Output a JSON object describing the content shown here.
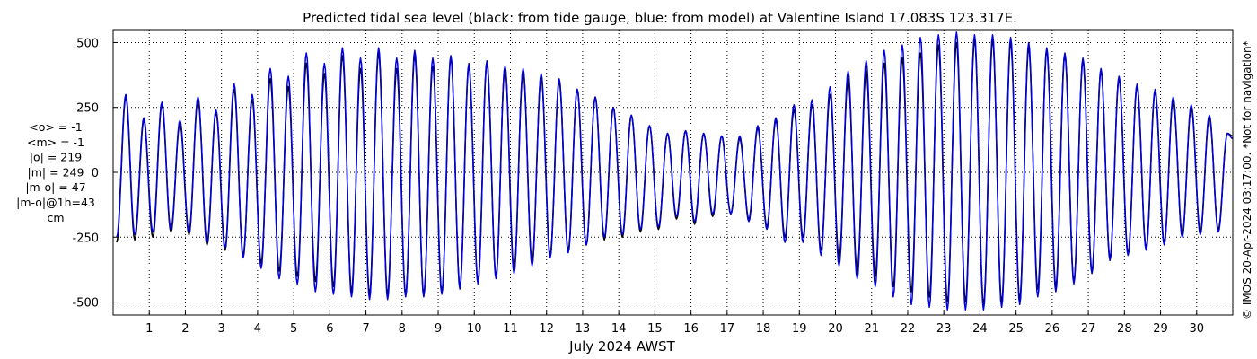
{
  "chart_data": {
    "type": "line",
    "title": "Predicted tidal sea level (black: from tide gauge, blue: from model) at Valentine Island 17.083S 123.317E.",
    "xlabel": "July 2024 AWST",
    "ylabel": "",
    "xlim": [
      0.0,
      31.0
    ],
    "ylim": [
      -550,
      550
    ],
    "yticks": [
      -500,
      -250,
      0,
      250,
      500
    ],
    "ytick_labels": [
      "-500",
      "-250",
      "0",
      "250",
      "500"
    ],
    "xticks": [
      1,
      2,
      3,
      4,
      5,
      6,
      7,
      8,
      9,
      10,
      11,
      12,
      13,
      14,
      15,
      16,
      17,
      18,
      19,
      20,
      21,
      22,
      23,
      24,
      25,
      26,
      27,
      28,
      29,
      30
    ],
    "xtick_labels": [
      "1",
      "2",
      "3",
      "4",
      "5",
      "6",
      "7",
      "8",
      "9",
      "10",
      "11",
      "12",
      "13",
      "14",
      "15",
      "16",
      "17",
      "18",
      "19",
      "20",
      "21",
      "22",
      "23",
      "24",
      "25",
      "26",
      "27",
      "28",
      "29",
      "30"
    ],
    "grid": true,
    "series": [
      {
        "color": "#000000",
        "x": [
          0.1,
          0.35,
          0.6,
          0.85,
          1.1,
          1.35,
          1.6,
          1.85,
          2.1,
          2.35,
          2.6,
          2.85,
          3.1,
          3.35,
          3.6,
          3.85,
          4.1,
          4.35,
          4.6,
          4.85,
          5.1,
          5.35,
          5.6,
          5.85,
          6.1,
          6.35,
          6.6,
          6.85,
          7.1,
          7.35,
          7.6,
          7.85,
          8.1,
          8.35,
          8.6,
          8.85,
          9.1,
          9.35,
          9.6,
          9.85,
          10.1,
          10.35,
          10.6,
          10.85,
          11.1,
          11.35,
          11.6,
          11.85,
          12.1,
          12.35,
          12.6,
          12.85,
          13.1,
          13.35,
          13.6,
          13.85,
          14.1,
          14.35,
          14.6,
          14.85,
          15.1,
          15.35,
          15.6,
          15.85,
          16.1,
          16.35,
          16.6,
          16.85,
          17.1,
          17.35,
          17.6,
          17.85,
          18.1,
          18.35,
          18.6,
          18.85,
          19.1,
          19.35,
          19.6,
          19.85,
          20.1,
          20.35,
          20.6,
          20.85,
          21.1,
          21.35,
          21.6,
          21.85,
          22.1,
          22.35,
          22.6,
          22.85,
          23.1,
          23.35,
          23.6,
          23.85,
          24.1,
          24.35,
          24.6,
          24.85,
          25.1,
          25.35,
          25.6,
          25.85,
          26.1,
          26.35,
          26.6,
          26.85,
          27.1,
          27.35,
          27.6,
          27.85,
          28.1,
          28.35,
          28.6,
          28.85,
          29.1,
          29.35,
          29.6,
          29.85,
          30.1,
          30.35,
          30.6,
          30.85,
          31.0
        ],
        "y": [
          -270,
          290,
          -260,
          200,
          -250,
          260,
          -230,
          190,
          -240,
          280,
          -280,
          230,
          -300,
          320,
          -320,
          280,
          -350,
          360,
          -380,
          330,
          -400,
          420,
          -420,
          380,
          -440,
          450,
          -460,
          400,
          -470,
          460,
          -470,
          400,
          -470,
          450,
          -470,
          410,
          -460,
          440,
          -440,
          410,
          -420,
          420,
          -400,
          400,
          -380,
          390,
          -350,
          370,
          -320,
          350,
          -300,
          320,
          -280,
          290,
          -260,
          250,
          -250,
          220,
          -230,
          180,
          -220,
          150,
          -180,
          160,
          -200,
          150,
          -170,
          140,
          -160,
          130,
          -180,
          170,
          -210,
          200,
          -250,
          240,
          -250,
          260,
          -300,
          300,
          -330,
          360,
          -380,
          390,
          -400,
          420,
          -440,
          440,
          -460,
          460,
          -480,
          490,
          -500,
          500,
          -500,
          510,
          -510,
          510,
          -500,
          500,
          -490,
          480,
          -450,
          470,
          -440,
          450,
          -420,
          430,
          -380,
          390,
          -330,
          360,
          -310,
          330,
          -290,
          310,
          -270,
          280,
          -240,
          250,
          -230,
          210,
          -220,
          150,
          140
        ]
      },
      {
        "color": "#0000dd",
        "x": [
          0.1,
          0.35,
          0.6,
          0.85,
          1.1,
          1.35,
          1.6,
          1.85,
          2.1,
          2.35,
          2.6,
          2.85,
          3.1,
          3.35,
          3.6,
          3.85,
          4.1,
          4.35,
          4.6,
          4.85,
          5.1,
          5.35,
          5.6,
          5.85,
          6.1,
          6.35,
          6.6,
          6.85,
          7.1,
          7.35,
          7.6,
          7.85,
          8.1,
          8.35,
          8.6,
          8.85,
          9.1,
          9.35,
          9.6,
          9.85,
          10.1,
          10.35,
          10.6,
          10.85,
          11.1,
          11.35,
          11.6,
          11.85,
          12.1,
          12.35,
          12.6,
          12.85,
          13.1,
          13.35,
          13.6,
          13.85,
          14.1,
          14.35,
          14.6,
          14.85,
          15.1,
          15.35,
          15.6,
          15.85,
          16.1,
          16.35,
          16.6,
          16.85,
          17.1,
          17.35,
          17.6,
          17.85,
          18.1,
          18.35,
          18.6,
          18.85,
          19.1,
          19.35,
          19.6,
          19.85,
          20.1,
          20.35,
          20.6,
          20.85,
          21.1,
          21.35,
          21.6,
          21.85,
          22.1,
          22.35,
          22.6,
          22.85,
          23.1,
          23.35,
          23.6,
          23.85,
          24.1,
          24.35,
          24.6,
          24.85,
          25.1,
          25.35,
          25.6,
          25.85,
          26.1,
          26.35,
          26.6,
          26.85,
          27.1,
          27.35,
          27.6,
          27.85,
          28.1,
          28.35,
          28.6,
          28.85,
          29.1,
          29.35,
          29.6,
          29.85,
          30.1,
          30.35,
          30.6,
          30.85,
          31.0
        ],
        "y": [
          -250,
          300,
          -240,
          210,
          -230,
          270,
          -220,
          200,
          -230,
          290,
          -270,
          240,
          -290,
          340,
          -330,
          300,
          -370,
          400,
          -410,
          370,
          -430,
          460,
          -460,
          420,
          -470,
          480,
          -480,
          440,
          -490,
          480,
          -490,
          440,
          -480,
          470,
          -480,
          440,
          -470,
          450,
          -450,
          420,
          -430,
          430,
          -410,
          410,
          -390,
          400,
          -360,
          380,
          -330,
          360,
          -310,
          320,
          -280,
          290,
          -250,
          250,
          -240,
          220,
          -220,
          180,
          -210,
          150,
          -170,
          160,
          -190,
          150,
          -160,
          140,
          -160,
          140,
          -190,
          180,
          -220,
          210,
          -270,
          260,
          -270,
          280,
          -320,
          330,
          -360,
          390,
          -410,
          430,
          -440,
          470,
          -480,
          490,
          -510,
          520,
          -520,
          530,
          -530,
          540,
          -530,
          530,
          -530,
          530,
          -520,
          520,
          -510,
          500,
          -480,
          480,
          -460,
          460,
          -430,
          440,
          -390,
          400,
          -340,
          370,
          -320,
          340,
          -300,
          320,
          -280,
          290,
          -250,
          260,
          -240,
          220,
          -230,
          150,
          130
        ]
      }
    ]
  },
  "stats": {
    "lines": [
      "<o> = -1",
      "<m> = -1",
      "|o| = 219",
      "|m| = 249",
      "|m-o| = 47",
      "|m-o|@1h=43",
      "cm"
    ]
  },
  "copyright": "© IMOS 20-Apr-2024 03:17:00. *Not for navigation*"
}
